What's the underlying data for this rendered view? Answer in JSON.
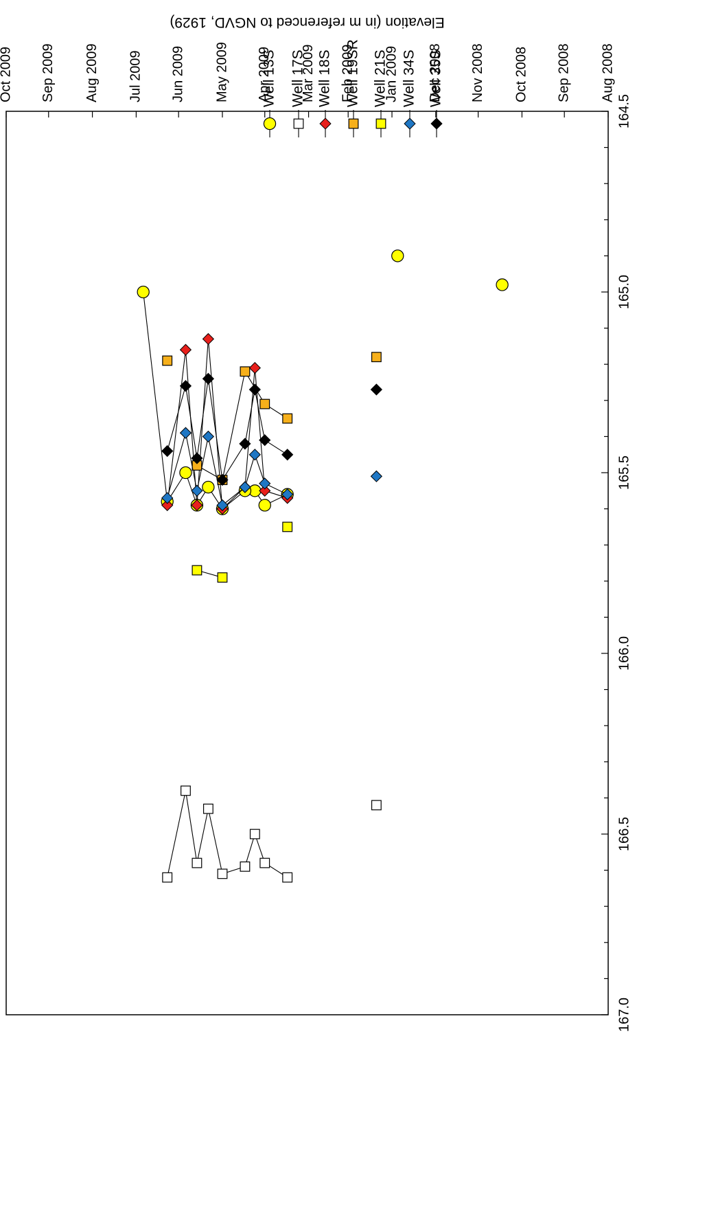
{
  "chart_data": {
    "type": "scatter",
    "orientation": "rotated-180",
    "ylabel": "Elevation (in m referenced to NGVD, 1929)",
    "xlabel": "",
    "xlim": [
      "2008-08-01",
      "2009-10-01"
    ],
    "ylim": [
      164.5,
      167.0
    ],
    "x_ticks": [
      "Aug 2008",
      "Sep 2008",
      "Oct 2008",
      "Nov 2008",
      "Dec 2008",
      "Jan 2009",
      "Feb 2009",
      "Mar 2009",
      "Apr 2009",
      "May 2009",
      "Jun 2009",
      "Jul 2009",
      "Aug 2009",
      "Sep 2009",
      "Oct 2009"
    ],
    "y_ticks": [
      "164.5",
      "165.0",
      "165.5",
      "166.0",
      "166.5",
      "167.0"
    ],
    "grid": false,
    "legend_position": "top",
    "series": [
      {
        "name": "Well 13S",
        "marker": "circle",
        "color": "#ffff00",
        "points": [
          {
            "x": "2008-10-15",
            "y": 164.98
          },
          {
            "x": "2008-12-28",
            "y": 164.9
          },
          {
            "x": "2009-03-16",
            "y": 165.56
          },
          {
            "x": "2009-04-01",
            "y": 165.59
          },
          {
            "x": "2009-04-08",
            "y": 165.55
          },
          {
            "x": "2009-04-15",
            "y": 165.55
          },
          {
            "x": "2009-05-01",
            "y": 165.6
          },
          {
            "x": "2009-05-11",
            "y": 165.54
          },
          {
            "x": "2009-05-19",
            "y": 165.59
          },
          {
            "x": "2009-05-27",
            "y": 165.5
          },
          {
            "x": "2009-06-09",
            "y": 165.58
          },
          {
            "x": "2009-06-26",
            "y": 165.0
          }
        ]
      },
      {
        "name": "Well 17S",
        "marker": "square",
        "color": "#ffffff",
        "points": [
          {
            "x": "2009-01-12",
            "y": 166.42
          },
          {
            "x": "2009-03-16",
            "y": 166.62
          },
          {
            "x": "2009-04-01",
            "y": 166.58
          },
          {
            "x": "2009-04-08",
            "y": 166.5
          },
          {
            "x": "2009-04-15",
            "y": 166.59
          },
          {
            "x": "2009-05-01",
            "y": 166.61
          },
          {
            "x": "2009-05-11",
            "y": 166.43
          },
          {
            "x": "2009-05-19",
            "y": 166.58
          },
          {
            "x": "2009-05-27",
            "y": 166.38
          },
          {
            "x": "2009-06-09",
            "y": 166.62
          }
        ]
      },
      {
        "name": "Well 18S",
        "marker": "diamond",
        "color": "#e8201c",
        "points": [
          {
            "x": "2009-03-16",
            "y": 165.57
          },
          {
            "x": "2009-04-01",
            "y": 165.55
          },
          {
            "x": "2009-04-08",
            "y": 165.21
          },
          {
            "x": "2009-04-15",
            "y": 165.54
          },
          {
            "x": "2009-05-01",
            "y": 165.6
          },
          {
            "x": "2009-05-11",
            "y": 165.13
          },
          {
            "x": "2009-05-19",
            "y": 165.59
          },
          {
            "x": "2009-05-27",
            "y": 165.16
          },
          {
            "x": "2009-06-09",
            "y": 165.59
          }
        ]
      },
      {
        "name": "Well 19SR",
        "marker": "square",
        "color": "#f7b01b",
        "points": [
          {
            "x": "2009-01-12",
            "y": 165.18
          },
          {
            "x": "2009-03-16",
            "y": 165.35
          },
          {
            "x": "2009-04-01",
            "y": 165.31
          },
          {
            "x": "2009-04-15",
            "y": 165.22
          },
          {
            "x": "2009-05-01",
            "y": 165.52
          },
          {
            "x": "2009-05-19",
            "y": 165.48
          },
          {
            "x": "2009-06-09",
            "y": 165.19
          }
        ]
      },
      {
        "name": "Well 21S",
        "marker": "square",
        "color": "#ffff00",
        "points": [
          {
            "x": "2009-03-16",
            "y": 165.65
          },
          {
            "x": "2009-05-01",
            "y": 165.79
          },
          {
            "x": "2009-05-19",
            "y": 165.77
          }
        ]
      },
      {
        "name": "Well 34S",
        "marker": "diamond",
        "color": "#1f77c4",
        "points": [
          {
            "x": "2009-01-12",
            "y": 165.51
          },
          {
            "x": "2009-03-16",
            "y": 165.56
          },
          {
            "x": "2009-04-01",
            "y": 165.53
          },
          {
            "x": "2009-04-08",
            "y": 165.45
          },
          {
            "x": "2009-04-15",
            "y": 165.54
          },
          {
            "x": "2009-05-01",
            "y": 165.59
          },
          {
            "x": "2009-05-11",
            "y": 165.4
          },
          {
            "x": "2009-05-19",
            "y": 165.55
          },
          {
            "x": "2009-05-27",
            "y": 165.39
          },
          {
            "x": "2009-06-09",
            "y": 165.57
          }
        ]
      },
      {
        "name": "Well 35S",
        "marker": "diamond",
        "color": "#000000",
        "points": [
          {
            "x": "2009-01-12",
            "y": 165.27
          },
          {
            "x": "2009-03-16",
            "y": 165.45
          },
          {
            "x": "2009-04-01",
            "y": 165.41
          },
          {
            "x": "2009-04-08",
            "y": 165.27
          },
          {
            "x": "2009-04-15",
            "y": 165.42
          },
          {
            "x": "2009-05-01",
            "y": 165.52
          },
          {
            "x": "2009-05-11",
            "y": 165.24
          },
          {
            "x": "2009-05-19",
            "y": 165.46
          },
          {
            "x": "2009-05-27",
            "y": 165.26
          },
          {
            "x": "2009-06-09",
            "y": 165.44
          }
        ]
      }
    ]
  }
}
